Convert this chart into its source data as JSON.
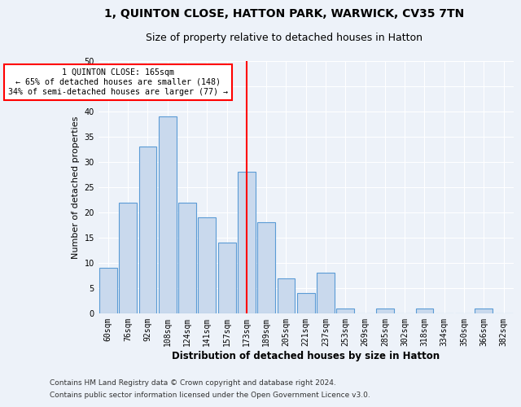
{
  "title1": "1, QUINTON CLOSE, HATTON PARK, WARWICK, CV35 7TN",
  "title2": "Size of property relative to detached houses in Hatton",
  "xlabel": "Distribution of detached houses by size in Hatton",
  "ylabel": "Number of detached properties",
  "categories": [
    "60sqm",
    "76sqm",
    "92sqm",
    "108sqm",
    "124sqm",
    "141sqm",
    "157sqm",
    "173sqm",
    "189sqm",
    "205sqm",
    "221sqm",
    "237sqm",
    "253sqm",
    "269sqm",
    "285sqm",
    "302sqm",
    "318sqm",
    "334sqm",
    "350sqm",
    "366sqm",
    "382sqm"
  ],
  "values": [
    9,
    22,
    33,
    39,
    22,
    19,
    14,
    28,
    18,
    7,
    4,
    8,
    1,
    0,
    1,
    0,
    1,
    0,
    0,
    1,
    0
  ],
  "bar_color": "#c9d9ed",
  "bar_edge_color": "#5b9bd5",
  "red_line_index": 7,
  "annotation_line1": "1 QUINTON CLOSE: 165sqm",
  "annotation_line2": "← 65% of detached houses are smaller (148)",
  "annotation_line3": "34% of semi-detached houses are larger (77) →",
  "ylim": [
    0,
    50
  ],
  "yticks": [
    0,
    5,
    10,
    15,
    20,
    25,
    30,
    35,
    40,
    45,
    50
  ],
  "footnote1": "Contains HM Land Registry data © Crown copyright and database right 2024.",
  "footnote2": "Contains public sector information licensed under the Open Government Licence v3.0.",
  "bg_color": "#edf2f9",
  "plot_bg_color": "#edf2f9",
  "grid_color": "#ffffff",
  "title1_fontsize": 10,
  "title2_fontsize": 9,
  "xlabel_fontsize": 8.5,
  "ylabel_fontsize": 8,
  "tick_fontsize": 7,
  "footnote_fontsize": 6.5
}
